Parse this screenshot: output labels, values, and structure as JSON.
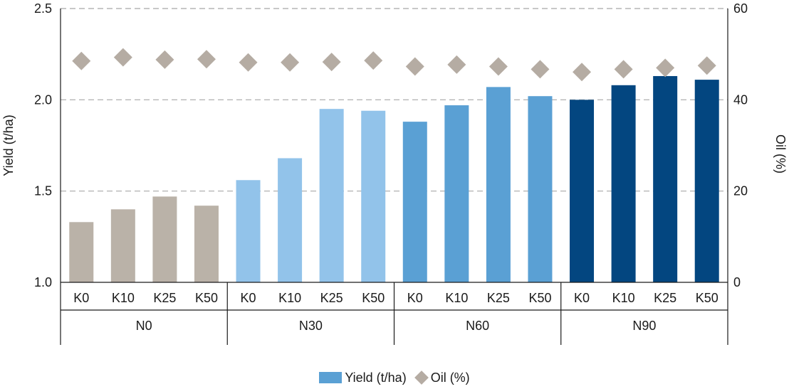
{
  "chart_data": {
    "type": "bar",
    "title": "",
    "ylabel": "Yield (t/ha)",
    "y2label": "Oil (%)",
    "ylim": [
      1.0,
      2.5
    ],
    "y2lim": [
      0,
      60
    ],
    "yticks": [
      "1.0",
      "1.5",
      "2.0",
      "2.5"
    ],
    "y2ticks": [
      "0",
      "20",
      "40",
      "60"
    ],
    "grid": "dashed horizontal",
    "groups": [
      {
        "label": "N0",
        "color": "#bab2a8",
        "categories": [
          "K0",
          "K10",
          "K25",
          "K50"
        ]
      },
      {
        "label": "N30",
        "color": "#92c3ea",
        "categories": [
          "K0",
          "K10",
          "K25",
          "K50"
        ]
      },
      {
        "label": "N60",
        "color": "#5aa0d4",
        "categories": [
          "K0",
          "K10",
          "K25",
          "K50"
        ]
      },
      {
        "label": "N90",
        "color": "#034680",
        "categories": [
          "K0",
          "K10",
          "K25",
          "K50"
        ]
      }
    ],
    "series": [
      {
        "name": "Yield (t/ha)",
        "axis": "left",
        "kind": "bar",
        "legend_color": "#5aa0d4",
        "values": [
          1.33,
          1.4,
          1.47,
          1.42,
          1.56,
          1.68,
          1.95,
          1.94,
          1.88,
          1.97,
          2.07,
          2.02,
          2.0,
          2.08,
          2.13,
          2.11
        ]
      },
      {
        "name": "Oil (%)",
        "axis": "right",
        "kind": "marker",
        "marker": "diamond",
        "color": "#b5aca3",
        "values": [
          48.5,
          49.3,
          48.8,
          48.9,
          48.2,
          48.2,
          48.3,
          48.6,
          47.3,
          47.7,
          47.3,
          46.7,
          46.1,
          46.7,
          47.0,
          47.5
        ]
      }
    ],
    "legend": "bottom-center"
  }
}
